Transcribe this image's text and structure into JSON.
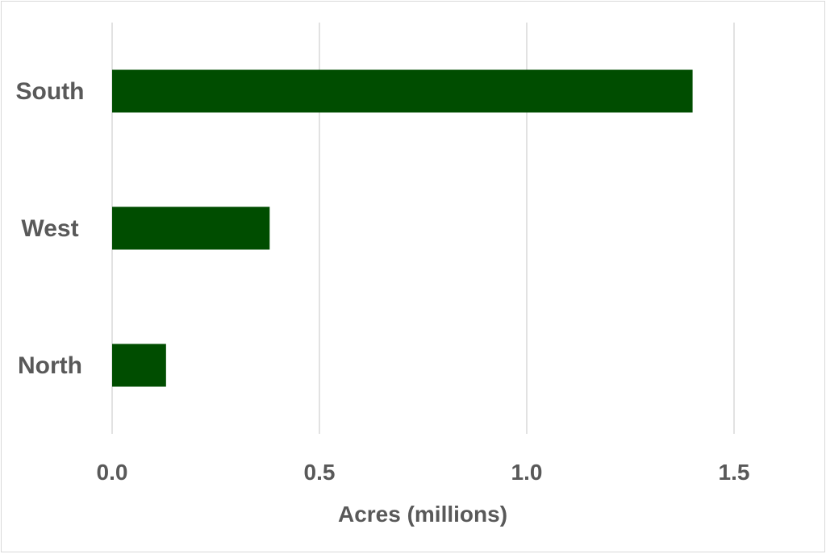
{
  "chart_data": {
    "type": "bar",
    "orientation": "horizontal",
    "categories": [
      "South",
      "West",
      "North"
    ],
    "values": [
      1.4,
      0.38,
      0.13
    ],
    "title": "",
    "xlabel": "Acres (millions)",
    "ylabel": "",
    "xlim": [
      0,
      1.5
    ],
    "xticks": [
      "0.0",
      "0.5",
      "1.0",
      "1.5"
    ],
    "grid": "vertical",
    "legend": "none",
    "bar_color": "#004d00",
    "text_color": "#595959",
    "grid_color": "#d9d9d9"
  }
}
